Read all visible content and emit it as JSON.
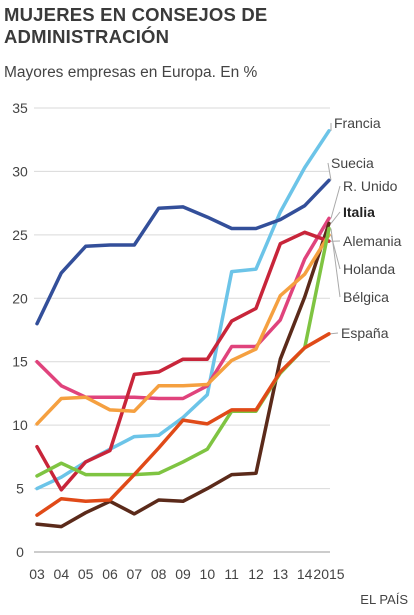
{
  "title": "MUJERES EN CONSEJOS DE ADMINISTRACIÓN",
  "subtitle": "Mayores empresas en Europa. En %",
  "source": "EL PAÍS",
  "chart_data": {
    "type": "line",
    "title": "MUJERES EN CONSEJOS DE ADMINISTRACIÓN",
    "subtitle": "Mayores empresas en Europa. En %",
    "xlabel": "",
    "ylabel": "",
    "x": [
      "03",
      "04",
      "05",
      "06",
      "07",
      "08",
      "09",
      "10",
      "11",
      "12",
      "13",
      "14",
      "2015"
    ],
    "ylim": [
      0,
      35
    ],
    "yticks": [
      0,
      5,
      10,
      15,
      20,
      25,
      30,
      35
    ],
    "grid": true,
    "legend": "direct-labels-right",
    "series": [
      {
        "name": "Francia",
        "color": "#6cc4e8",
        "values": [
          5.0,
          5.9,
          7.1,
          8.1,
          9.1,
          9.2,
          10.6,
          12.4,
          22.1,
          22.3,
          26.8,
          30.3,
          33.2
        ]
      },
      {
        "name": "Suecia",
        "color": "#334f9a",
        "values": [
          18.0,
          22.0,
          24.1,
          24.2,
          24.2,
          27.1,
          27.2,
          26.4,
          25.5,
          25.5,
          26.2,
          27.3,
          29.3
        ]
      },
      {
        "name": "R. Unido",
        "color": "#e0437c",
        "values": [
          15.0,
          13.1,
          12.2,
          12.2,
          12.2,
          12.1,
          12.1,
          13.1,
          16.2,
          16.2,
          18.3,
          23.1,
          26.3
        ]
      },
      {
        "name": "Italia",
        "color": "#5b2a1a",
        "values": [
          2.2,
          2.0,
          3.1,
          4.0,
          3.0,
          4.1,
          4.0,
          5.0,
          6.1,
          6.2,
          15.2,
          20.1,
          25.9
        ]
      },
      {
        "name": "Alemania",
        "color": "#c8253a",
        "values": [
          8.3,
          4.9,
          7.1,
          8.0,
          14.0,
          14.2,
          15.2,
          15.2,
          18.2,
          19.2,
          24.3,
          25.2,
          24.5
        ]
      },
      {
        "name": "Holanda",
        "color": "#f5a040",
        "values": [
          10.1,
          12.1,
          12.2,
          11.2,
          11.1,
          13.1,
          13.1,
          13.2,
          15.1,
          16.0,
          20.2,
          21.9,
          25.0
        ]
      },
      {
        "name": "Bélgica",
        "color": "#7fc442",
        "values": [
          6.0,
          7.0,
          6.1,
          6.1,
          6.1,
          6.2,
          7.1,
          8.1,
          11.1,
          11.1,
          14.1,
          16.1,
          25.5
        ]
      },
      {
        "name": "España",
        "color": "#e04a18",
        "values": [
          2.9,
          4.2,
          4.0,
          4.1,
          6.1,
          8.2,
          10.4,
          10.1,
          11.2,
          11.2,
          14.2,
          16.1,
          17.2
        ]
      }
    ],
    "annotations": [
      {
        "text": "Francia",
        "bold": false
      },
      {
        "text": "Suecia",
        "bold": false
      },
      {
        "text": "R. Unido",
        "bold": false
      },
      {
        "text": "Italia",
        "bold": true
      },
      {
        "text": "Alemania",
        "bold": false
      },
      {
        "text": "Holanda",
        "bold": false
      },
      {
        "text": "Bélgica",
        "bold": false
      },
      {
        "text": "España",
        "bold": false
      }
    ]
  }
}
